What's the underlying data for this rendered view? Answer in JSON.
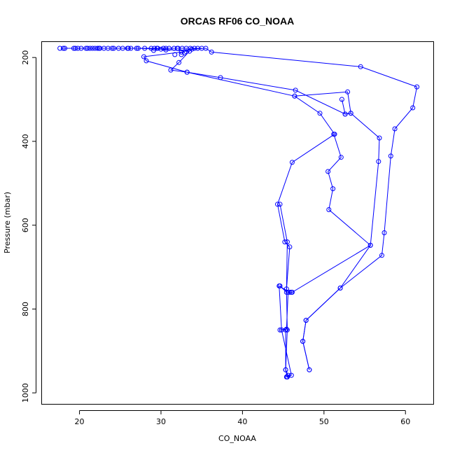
{
  "chart_data": {
    "type": "scatter",
    "title": "ORCAS RF06 CO_NOAA",
    "xlabel": "CO_NOAA",
    "ylabel": "Pressure (mbar)",
    "xlim": [
      15.4,
      63.5
    ],
    "ylim": [
      1028,
      163
    ],
    "y_reversed": true,
    "grid": false,
    "xticks": [
      20,
      30,
      40,
      50,
      60
    ],
    "yticks": [
      200,
      400,
      600,
      800,
      1000
    ],
    "series": [
      {
        "mode": "lines+markers",
        "points": [
          [
            45.5,
            962
          ],
          [
            45.6,
            958
          ],
          [
            45.3,
            945
          ],
          [
            45.5,
            850
          ],
          [
            45.4,
            752
          ],
          [
            45.8,
            652
          ],
          [
            45.2,
            640
          ],
          [
            44.3,
            550
          ],
          [
            46.1,
            450
          ],
          [
            51.3,
            383
          ],
          [
            49.5,
            333
          ],
          [
            46.4,
            292
          ],
          [
            33.2,
            235
          ],
          [
            31.2,
            230
          ],
          [
            32.2,
            212
          ],
          [
            33.5,
            185
          ],
          [
            30.0,
            180
          ],
          [
            27.0,
            178
          ],
          [
            24.0,
            178
          ],
          [
            21.0,
            178
          ],
          [
            18.0,
            178
          ],
          [
            19.5,
            178
          ],
          [
            22.5,
            178
          ],
          [
            26.0,
            178
          ],
          [
            29.5,
            178
          ],
          [
            32.0,
            178
          ],
          [
            35.0,
            178
          ]
        ]
      },
      {
        "mode": "lines+markers",
        "points": [
          [
            45.4,
            962
          ],
          [
            46.0,
            958
          ],
          [
            44.8,
            850
          ],
          [
            44.5,
            745
          ],
          [
            45.8,
            760
          ],
          [
            46.0,
            760
          ]
        ]
      },
      {
        "mode": "lines+markers",
        "points": [
          [
            48.2,
            945
          ],
          [
            47.4,
            877
          ],
          [
            47.8,
            827
          ],
          [
            52.0,
            750
          ],
          [
            55.7,
            648
          ],
          [
            50.6,
            563
          ],
          [
            51.1,
            513
          ],
          [
            50.5,
            472
          ],
          [
            52.1,
            438
          ],
          [
            51.2,
            383
          ]
        ]
      },
      {
        "mode": "lines+markers",
        "points": [
          [
            44.6,
            550
          ],
          [
            45.5,
            640
          ],
          [
            45.4,
            760
          ],
          [
            44.6,
            745
          ]
        ]
      },
      {
        "mode": "lines+markers",
        "points": [
          [
            45.5,
            962
          ],
          [
            45.3,
            945
          ],
          [
            45.3,
            850
          ],
          [
            44.6,
            850
          ],
          [
            45.4,
            848
          ],
          [
            45.6,
            760
          ],
          [
            46.1,
            760
          ],
          [
            55.7,
            648
          ],
          [
            56.7,
            448
          ],
          [
            56.8,
            392
          ],
          [
            53.3,
            333
          ],
          [
            52.6,
            335
          ],
          [
            46.5,
            278
          ],
          [
            37.3,
            248
          ],
          [
            33.2,
            235
          ],
          [
            28.2,
            208
          ],
          [
            27.9,
            198
          ],
          [
            32.5,
            187
          ],
          [
            33.8,
            180
          ],
          [
            35.5,
            178
          ],
          [
            36.2,
            187
          ],
          [
            54.5,
            222
          ],
          [
            61.4,
            270
          ],
          [
            60.9,
            320
          ],
          [
            58.7,
            370
          ],
          [
            58.2,
            435
          ],
          [
            57.4,
            618
          ],
          [
            57.1,
            672
          ],
          [
            52.0,
            750
          ],
          [
            47.8,
            827
          ],
          [
            47.4,
            877
          ],
          [
            48.2,
            945
          ]
        ]
      },
      {
        "mode": "lines+markers",
        "points": [
          [
            52.2,
            300
          ],
          [
            52.6,
            335
          ],
          [
            53.3,
            333
          ],
          [
            52.9,
            282
          ],
          [
            46.4,
            292
          ]
        ]
      },
      {
        "mode": "markers",
        "points": [
          [
            17.6,
            178
          ],
          [
            18.2,
            178
          ],
          [
            19.3,
            178
          ],
          [
            19.8,
            178
          ],
          [
            20.2,
            178
          ],
          [
            20.8,
            178
          ],
          [
            21.3,
            178
          ],
          [
            21.6,
            178
          ],
          [
            21.9,
            178
          ],
          [
            22.2,
            178
          ],
          [
            22.4,
            178
          ],
          [
            23.0,
            178
          ],
          [
            23.5,
            178
          ],
          [
            24.2,
            178
          ],
          [
            24.8,
            178
          ],
          [
            25.3,
            178
          ],
          [
            25.9,
            178
          ],
          [
            26.3,
            178
          ],
          [
            27.2,
            178
          ],
          [
            28.0,
            178
          ],
          [
            28.8,
            178
          ],
          [
            29.2,
            178
          ],
          [
            29.6,
            178
          ],
          [
            30.3,
            178
          ],
          [
            30.6,
            178
          ],
          [
            31.0,
            178
          ],
          [
            31.6,
            178
          ],
          [
            32.1,
            178
          ],
          [
            32.6,
            178
          ],
          [
            33.1,
            178
          ],
          [
            33.6,
            178
          ],
          [
            34.1,
            178
          ],
          [
            34.5,
            178
          ],
          [
            29.1,
            183
          ],
          [
            30.6,
            182
          ],
          [
            32.9,
            189
          ],
          [
            31.7,
            193
          ],
          [
            32.5,
            193
          ],
          [
            33.1,
            186
          ]
        ]
      }
    ]
  }
}
